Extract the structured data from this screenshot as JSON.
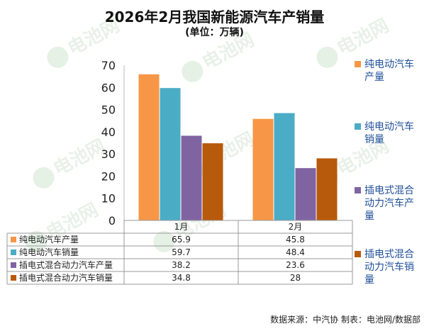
{
  "chart_data": {
    "type": "bar",
    "title": "2026年2月我国新能源汽车产销量",
    "subtitle": "(单位：万辆)",
    "categories": [
      "1月",
      "2月"
    ],
    "series": [
      {
        "name": "纯电动汽车产量",
        "values": [
          65.9,
          45.8
        ],
        "color": "#f79646"
      },
      {
        "name": "纯电动汽车销量",
        "values": [
          59.7,
          48.4
        ],
        "color": "#4bacc6"
      },
      {
        "name": "插电式混合动力汽车产量",
        "values": [
          38.2,
          23.6
        ],
        "color": "#8064a2"
      },
      {
        "name": "插电式混合动力汽车销量",
        "values": [
          34.8,
          28
        ],
        "color": "#b85a0b"
      }
    ],
    "yticks": [
      0,
      10,
      20,
      30,
      40,
      50,
      60,
      70
    ],
    "ylim": [
      0,
      70
    ],
    "legend_position": "right",
    "data_table": true,
    "grid": false
  },
  "legend_labels": [
    "纯电动汽车\n产量",
    "纯电动汽车\n销量",
    "插电式混合\n动力汽车产\n量",
    "插电式混合\n动力汽车销\n量"
  ],
  "table_values": [
    [
      "65.9",
      "45.8"
    ],
    [
      "59.7",
      "48.4"
    ],
    [
      "38.2",
      "23.6"
    ],
    [
      "34.8",
      "28"
    ]
  ],
  "watermark": "电池网",
  "source_note": "数据来源：中汽协  制表：电池网/数据部"
}
